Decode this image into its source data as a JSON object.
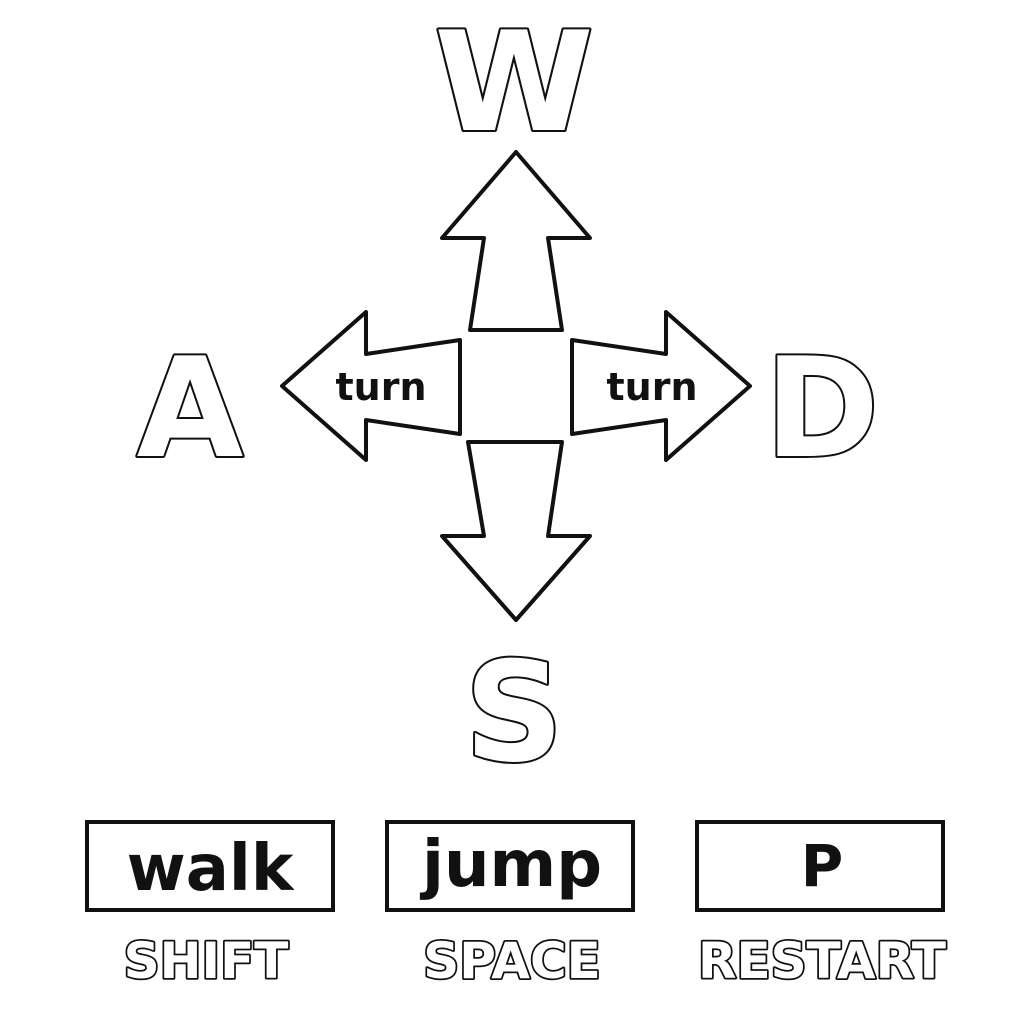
{
  "keys": {
    "up": "W",
    "left": "A",
    "right": "D",
    "down": "S"
  },
  "arrows": {
    "left_label": "turn",
    "right_label": "turn"
  },
  "actions": [
    {
      "label": "walk",
      "key": "SHIFT"
    },
    {
      "label": "jump",
      "key": "SPACE"
    },
    {
      "label": "P",
      "key": "RESTART"
    }
  ],
  "colors": {
    "outline": "#111111",
    "fill": "#ffffff"
  }
}
